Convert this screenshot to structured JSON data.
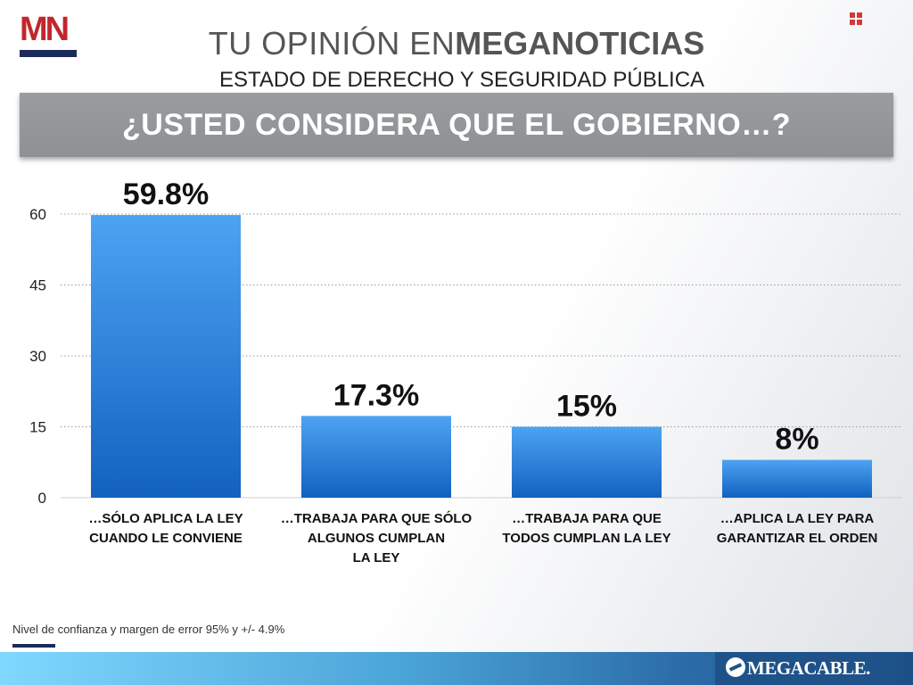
{
  "logo": {
    "text": "MN"
  },
  "header": {
    "title_light": "TU OPINIÓN EN",
    "title_bold": "MEGANOTICIAS",
    "subtitle": "ESTADO DE DERECHO Y SEGURIDAD PÚBLICA"
  },
  "banner": {
    "question": "¿USTED CONSIDERA QUE EL GOBIERNO…?"
  },
  "chart_data": {
    "type": "bar",
    "title": "¿USTED CONSIDERA QUE EL GOBIERNO…?",
    "categories": [
      [
        "…SÓLO APLICA LA LEY",
        "CUANDO LE CONVIENE"
      ],
      [
        "…TRABAJA PARA QUE SÓLO",
        "ALGUNOS CUMPLAN",
        "LA LEY"
      ],
      [
        "…TRABAJA PARA QUE",
        "TODOS CUMPLAN LA LEY"
      ],
      [
        "…APLICA LA LEY PARA",
        "GARANTIZAR EL ORDEN"
      ]
    ],
    "values": [
      59.8,
      17.3,
      15,
      8
    ],
    "value_labels": [
      "59.8%",
      "17.3%",
      "15%",
      "8%"
    ],
    "yticks": [
      0,
      15,
      30,
      45,
      60
    ],
    "ylim": [
      0,
      60
    ],
    "grid": true,
    "bar_color_top": "#4da3f2",
    "bar_color_bottom": "#1261c0"
  },
  "footnote": "Nivel de confianza y margen de error 95% y +/- 4.9%",
  "brand": {
    "name": "MEGACABLE."
  }
}
